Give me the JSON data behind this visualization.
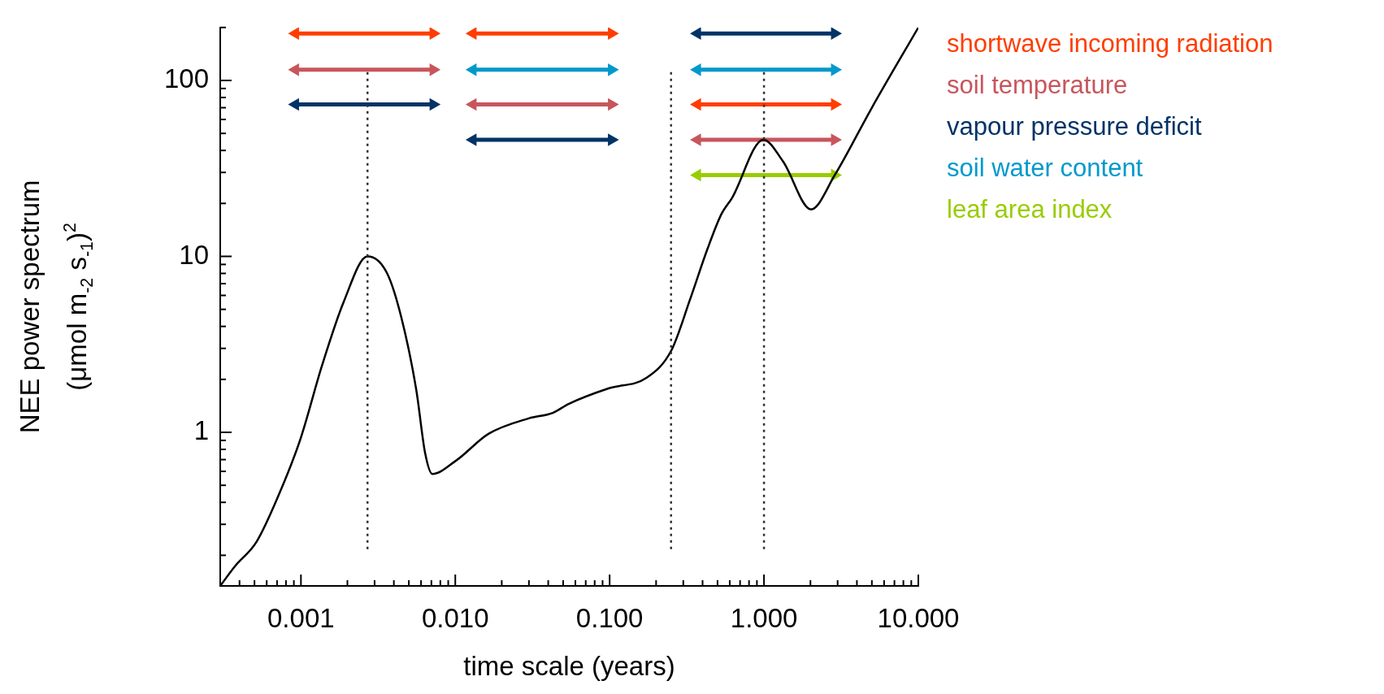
{
  "chart_data": {
    "type": "line",
    "xlabel": "time scale (years)",
    "ylabel": "NEE power spectrum\n(μmol m$_{-2}$ s$_{-1}$)$^{2}$",
    "log": "xy",
    "xlim": [
      0.0003,
      10
    ],
    "ylim": [
      0.134,
      200
    ],
    "xticks": [
      {
        "value": 0.0004,
        "label": null
      },
      {
        "value": 0.0005,
        "label": null
      },
      {
        "value": 0.0006,
        "label": null
      },
      {
        "value": 0.0007,
        "label": null
      },
      {
        "value": 0.0008,
        "label": null
      },
      {
        "value": 0.0009,
        "label": null
      },
      {
        "value": 0.001,
        "label": "0.001"
      },
      {
        "value": 0.002,
        "label": null
      },
      {
        "value": 0.003,
        "label": null
      },
      {
        "value": 0.004,
        "label": null
      },
      {
        "value": 0.005,
        "label": null
      },
      {
        "value": 0.006,
        "label": null
      },
      {
        "value": 0.007,
        "label": null
      },
      {
        "value": 0.008,
        "label": null
      },
      {
        "value": 0.009,
        "label": null
      },
      {
        "value": 0.01,
        "label": "0.010"
      },
      {
        "value": 0.02,
        "label": null
      },
      {
        "value": 0.03,
        "label": null
      },
      {
        "value": 0.04,
        "label": null
      },
      {
        "value": 0.05,
        "label": null
      },
      {
        "value": 0.06,
        "label": null
      },
      {
        "value": 0.07,
        "label": null
      },
      {
        "value": 0.08,
        "label": null
      },
      {
        "value": 0.09,
        "label": null
      },
      {
        "value": 0.1,
        "label": "0.100"
      },
      {
        "value": 0.2,
        "label": null
      },
      {
        "value": 0.3,
        "label": null
      },
      {
        "value": 0.4,
        "label": null
      },
      {
        "value": 0.5,
        "label": null
      },
      {
        "value": 0.6,
        "label": null
      },
      {
        "value": 0.7,
        "label": null
      },
      {
        "value": 0.8,
        "label": null
      },
      {
        "value": 0.9,
        "label": null
      },
      {
        "value": 1,
        "label": "1.000"
      },
      {
        "value": 2,
        "label": null
      },
      {
        "value": 3,
        "label": null
      },
      {
        "value": 4,
        "label": null
      },
      {
        "value": 5,
        "label": null
      },
      {
        "value": 6,
        "label": null
      },
      {
        "value": 7,
        "label": null
      },
      {
        "value": 8,
        "label": null
      },
      {
        "value": 9,
        "label": null
      },
      {
        "value": 10,
        "label": "10.000"
      }
    ],
    "yticks": [
      {
        "value": 0.2,
        "label": null
      },
      {
        "value": 0.3,
        "label": null
      },
      {
        "value": 0.4,
        "label": null
      },
      {
        "value": 0.5,
        "label": null
      },
      {
        "value": 0.6,
        "label": null
      },
      {
        "value": 0.7,
        "label": null
      },
      {
        "value": 0.8,
        "label": null
      },
      {
        "value": 0.9,
        "label": null
      },
      1,
      {
        "value": 2,
        "label": null
      },
      {
        "value": 3,
        "label": null
      },
      {
        "value": 4,
        "label": null
      },
      {
        "value": 5,
        "label": null
      },
      {
        "value": 6,
        "label": null
      },
      {
        "value": 7,
        "label": null
      },
      {
        "value": 8,
        "label": null
      },
      {
        "value": 9,
        "label": null
      },
      10,
      {
        "value": 20,
        "label": null
      },
      {
        "value": 30,
        "label": null
      },
      {
        "value": 40,
        "label": null
      },
      {
        "value": 50,
        "label": null
      },
      {
        "value": 60,
        "label": null
      },
      {
        "value": 70,
        "label": null
      },
      {
        "value": 80,
        "label": null
      },
      {
        "value": 90,
        "label": null
      },
      100,
      {
        "value": 200,
        "label": null
      }
    ],
    "grid": false,
    "legend": "right",
    "marker": "none",
    "series": [
      {
        "color": "#000000",
        "x": [
          0.0003,
          0.000373,
          0.000516,
          0.000715,
          0.00099,
          0.00137,
          0.00189,
          0.0027,
          0.00362,
          0.0045,
          0.00559,
          0.00638,
          0.0071,
          0.0101,
          0.0164,
          0.0299,
          0.0428,
          0.0542,
          0.099,
          0.173,
          0.251,
          0.332,
          0.43,
          0.53,
          0.621,
          0.99,
          1.33,
          2.02,
          2.87,
          5.0,
          10
        ],
        "values": [
          0.134,
          0.173,
          0.239,
          0.437,
          0.91,
          2.4,
          5.5,
          10,
          8,
          4.4,
          1.74,
          0.76,
          0.58,
          0.69,
          0.98,
          1.2,
          1.29,
          1.45,
          1.78,
          2.04,
          2.92,
          5.7,
          11,
          17.4,
          21.5,
          46,
          34.6,
          18.5,
          28.9,
          70,
          200
        ]
      },
      {
        "name": "shortwave incoming radiation",
        "color": "#ff3d00",
        "marker": "triangle",
        "x": [
          0.00092,
          0.0072,
          0.01,
          0.013,
          0.103,
          0.2,
          0.37,
          2.87
        ],
        "values": [
          185,
          185,
          null,
          185,
          185,
          null,
          73,
          73
        ]
      },
      {
        "name": "soil temperature",
        "color": "#c8555c",
        "marker": "triangle",
        "x": [
          0.00092,
          0.0072,
          0.01,
          0.013,
          0.103,
          0.2,
          0.37,
          2.87
        ],
        "values": [
          115,
          115,
          null,
          73,
          73,
          null,
          46,
          46
        ]
      },
      {
        "name": "vapour pressure deficit",
        "color": "#003366",
        "marker": "triangle",
        "x": [
          0.00092,
          0.0072,
          0.01,
          0.013,
          0.103,
          0.2,
          0.37,
          2.87
        ],
        "values": [
          73,
          73,
          null,
          46,
          46,
          null,
          185,
          185
        ]
      },
      {
        "name": "soil water content",
        "color": "#0099cc",
        "marker": "triangle",
        "x": [
          0.013,
          0.103,
          0.2,
          0.37,
          2.87
        ],
        "values": [
          115,
          115,
          null,
          115,
          115
        ]
      },
      {
        "name": "leaf area index",
        "color": "#99cc00",
        "marker": "triangle",
        "x": [
          0.37,
          2.87
        ],
        "values": [
          29,
          29
        ]
      }
    ],
    "ref_lines": [
      {
        "axis": "x",
        "value": 0.0027,
        "color": "#333333",
        "line_style": "dotted"
      },
      {
        "axis": "x",
        "value": 0.25,
        "color": "#333333",
        "line_style": "dotted"
      },
      {
        "axis": "x",
        "value": 1,
        "color": "#333333",
        "line_style": "dotted"
      }
    ]
  }
}
